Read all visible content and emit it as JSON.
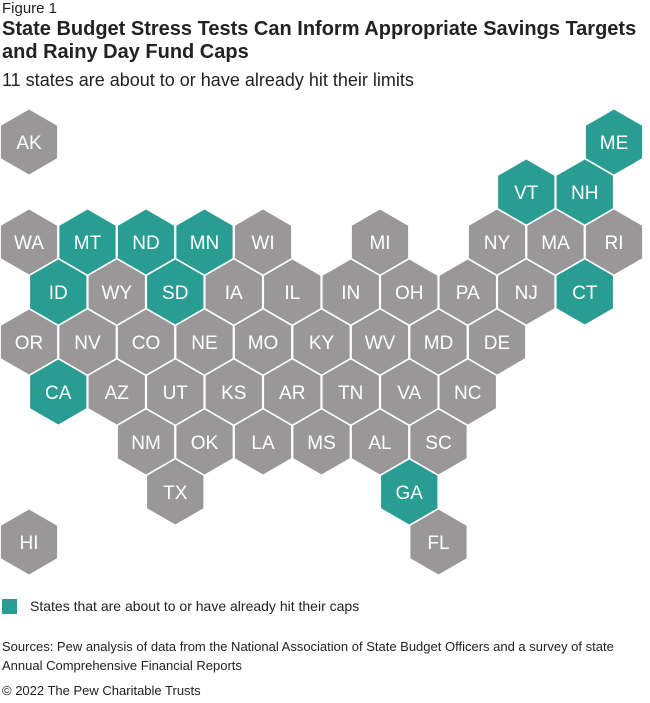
{
  "figure_label": "Figure 1",
  "title": "State Budget Stress Tests Can Inform Appropriate Savings Targets and Rainy Day Fund Caps",
  "subtitle": "11 states are about to or have already hit their limits",
  "colors": {
    "highlight": "#2a9d93",
    "default": "#999797",
    "label": "#ffffff"
  },
  "chart_data": {
    "type": "hex tile map",
    "legend": [
      {
        "label": "States that are about to or have already hit their caps",
        "color": "#2a9d93"
      }
    ],
    "states": [
      {
        "abbr": "AK",
        "row": 0,
        "col": 0,
        "hit": false
      },
      {
        "abbr": "ME",
        "row": 0,
        "col": 10,
        "hit": true
      },
      {
        "abbr": "VT",
        "row": 1,
        "col": 8.5,
        "hit": true
      },
      {
        "abbr": "NH",
        "row": 1,
        "col": 9.5,
        "hit": true
      },
      {
        "abbr": "WA",
        "row": 2,
        "col": 0,
        "hit": false
      },
      {
        "abbr": "MT",
        "row": 2,
        "col": 1,
        "hit": true
      },
      {
        "abbr": "ND",
        "row": 2,
        "col": 2,
        "hit": true
      },
      {
        "abbr": "MN",
        "row": 2,
        "col": 3,
        "hit": true
      },
      {
        "abbr": "WI",
        "row": 2,
        "col": 4,
        "hit": false
      },
      {
        "abbr": "MI",
        "row": 2,
        "col": 6,
        "hit": false
      },
      {
        "abbr": "NY",
        "row": 2,
        "col": 8,
        "hit": false
      },
      {
        "abbr": "MA",
        "row": 2,
        "col": 9,
        "hit": false
      },
      {
        "abbr": "RI",
        "row": 2,
        "col": 10,
        "hit": false
      },
      {
        "abbr": "ID",
        "row": 3,
        "col": 0.5,
        "hit": true
      },
      {
        "abbr": "WY",
        "row": 3,
        "col": 1.5,
        "hit": false
      },
      {
        "abbr": "SD",
        "row": 3,
        "col": 2.5,
        "hit": true
      },
      {
        "abbr": "IA",
        "row": 3,
        "col": 3.5,
        "hit": false
      },
      {
        "abbr": "IL",
        "row": 3,
        "col": 4.5,
        "hit": false
      },
      {
        "abbr": "IN",
        "row": 3,
        "col": 5.5,
        "hit": false
      },
      {
        "abbr": "OH",
        "row": 3,
        "col": 6.5,
        "hit": false
      },
      {
        "abbr": "PA",
        "row": 3,
        "col": 7.5,
        "hit": false
      },
      {
        "abbr": "NJ",
        "row": 3,
        "col": 8.5,
        "hit": false
      },
      {
        "abbr": "CT",
        "row": 3,
        "col": 9.5,
        "hit": true
      },
      {
        "abbr": "OR",
        "row": 4,
        "col": 0,
        "hit": false
      },
      {
        "abbr": "NV",
        "row": 4,
        "col": 1,
        "hit": false
      },
      {
        "abbr": "CO",
        "row": 4,
        "col": 2,
        "hit": false
      },
      {
        "abbr": "NE",
        "row": 4,
        "col": 3,
        "hit": false
      },
      {
        "abbr": "MO",
        "row": 4,
        "col": 4,
        "hit": false
      },
      {
        "abbr": "KY",
        "row": 4,
        "col": 5,
        "hit": false
      },
      {
        "abbr": "WV",
        "row": 4,
        "col": 6,
        "hit": false
      },
      {
        "abbr": "MD",
        "row": 4,
        "col": 7,
        "hit": false
      },
      {
        "abbr": "DE",
        "row": 4,
        "col": 8,
        "hit": false
      },
      {
        "abbr": "CA",
        "row": 5,
        "col": 0.5,
        "hit": true
      },
      {
        "abbr": "AZ",
        "row": 5,
        "col": 1.5,
        "hit": false
      },
      {
        "abbr": "UT",
        "row": 5,
        "col": 2.5,
        "hit": false
      },
      {
        "abbr": "KS",
        "row": 5,
        "col": 3.5,
        "hit": false
      },
      {
        "abbr": "AR",
        "row": 5,
        "col": 4.5,
        "hit": false
      },
      {
        "abbr": "TN",
        "row": 5,
        "col": 5.5,
        "hit": false
      },
      {
        "abbr": "VA",
        "row": 5,
        "col": 6.5,
        "hit": false
      },
      {
        "abbr": "NC",
        "row": 5,
        "col": 7.5,
        "hit": false
      },
      {
        "abbr": "NM",
        "row": 6,
        "col": 2,
        "hit": false
      },
      {
        "abbr": "OK",
        "row": 6,
        "col": 3,
        "hit": false
      },
      {
        "abbr": "LA",
        "row": 6,
        "col": 4,
        "hit": false
      },
      {
        "abbr": "MS",
        "row": 6,
        "col": 5,
        "hit": false
      },
      {
        "abbr": "AL",
        "row": 6,
        "col": 6,
        "hit": false
      },
      {
        "abbr": "SC",
        "row": 6,
        "col": 7,
        "hit": false
      },
      {
        "abbr": "TX",
        "row": 7,
        "col": 2.5,
        "hit": false
      },
      {
        "abbr": "GA",
        "row": 7,
        "col": 6.5,
        "hit": true
      },
      {
        "abbr": "HI",
        "row": 8,
        "col": 0,
        "hit": false
      },
      {
        "abbr": "FL",
        "row": 8,
        "col": 7,
        "hit": false
      }
    ]
  },
  "sources": "Sources: Pew analysis of data from the National Association of State Budget Officers and a survey of state Annual Comprehensive Financial Reports",
  "copyright": "© 2022 The Pew Charitable Trusts"
}
